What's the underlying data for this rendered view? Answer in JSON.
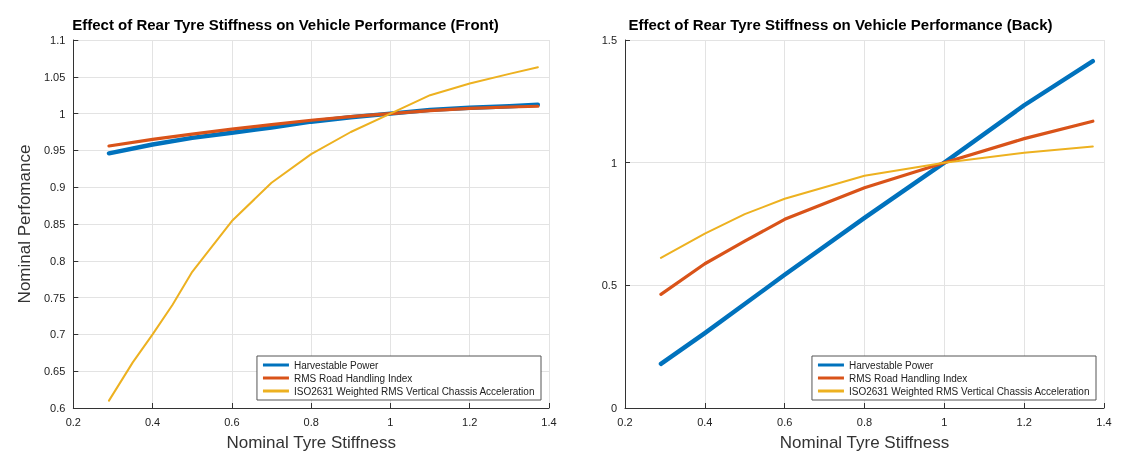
{
  "chart_data": [
    {
      "type": "line",
      "title": "Effect of Rear Tyre Stiffness on Vehicle Performance (Front)",
      "xlabel": "Nominal Tyre Stiffness",
      "ylabel": "Nominal Perfomance",
      "xlim": [
        0.2,
        1.4
      ],
      "xticks": [
        0.2,
        0.4,
        0.6,
        0.8,
        1,
        1.2,
        1.4
      ],
      "ylim": [
        0.6,
        1.1
      ],
      "yticks": [
        0.6,
        0.65,
        0.7,
        0.75,
        0.8,
        0.85,
        0.9,
        0.95,
        1,
        1.05,
        1.1
      ],
      "grid": true,
      "legend": "bottom right",
      "series": [
        {
          "name": "Harvestable Power",
          "color": "#0072bd",
          "x": [
            0.29,
            0.4,
            0.5,
            0.6,
            0.7,
            0.8,
            0.9,
            1,
            1.1,
            1.2,
            1.3,
            1.372
          ],
          "values": [
            0.946,
            0.958,
            0.967,
            0.974,
            0.981,
            0.989,
            0.995,
            1.0,
            1.005,
            1.008,
            1.01,
            1.012
          ]
        },
        {
          "name": "RMS Road Handling Index",
          "color": "#d95319",
          "x": [
            0.29,
            0.4,
            0.5,
            0.6,
            0.7,
            0.8,
            0.9,
            1,
            1.1,
            1.2,
            1.3,
            1.372
          ],
          "values": [
            0.956,
            0.965,
            0.972,
            0.979,
            0.985,
            0.991,
            0.996,
            1.0,
            1.004,
            1.007,
            1.009,
            1.01
          ]
        },
        {
          "name": "ISO2631 Weighted RMS Vertical Chassis Acceleration",
          "color": "#edb120",
          "x": [
            0.29,
            0.35,
            0.4,
            0.45,
            0.5,
            0.6,
            0.7,
            0.8,
            0.9,
            1,
            1.1,
            1.2,
            1.3,
            1.372
          ],
          "values": [
            0.61,
            0.662,
            0.7,
            0.74,
            0.785,
            0.854,
            0.906,
            0.945,
            0.975,
            1.0,
            1.025,
            1.041,
            1.054,
            1.063
          ]
        }
      ]
    },
    {
      "type": "line",
      "title": "Effect of Rear Tyre Stiffness on Vehicle Performance (Back)",
      "xlabel": "Nominal Tyre Stiffness",
      "xlim": [
        0.2,
        1.4
      ],
      "xticks": [
        0.2,
        0.4,
        0.6,
        0.8,
        1,
        1.2,
        1.4
      ],
      "ylim": [
        0,
        1.5
      ],
      "yticks": [
        0,
        0.5,
        1,
        1.5
      ],
      "grid": true,
      "legend": "bottom right",
      "series": [
        {
          "name": "Harvestable Power",
          "color": "#0072bd",
          "x": [
            0.29,
            0.4,
            0.6,
            0.8,
            1,
            1.2,
            1.372
          ],
          "values": [
            0.18,
            0.305,
            0.543,
            0.775,
            1.0,
            1.234,
            1.414
          ]
        },
        {
          "name": "RMS Road Handling Index",
          "color": "#d95319",
          "x": [
            0.29,
            0.4,
            0.5,
            0.6,
            0.8,
            1,
            1.2,
            1.372
          ],
          "values": [
            0.463,
            0.588,
            0.68,
            0.769,
            0.898,
            1.0,
            1.098,
            1.169
          ]
        },
        {
          "name": "ISO2631 Weighted RMS Vertical Chassis Acceleration",
          "color": "#edb120",
          "x": [
            0.29,
            0.4,
            0.5,
            0.6,
            0.8,
            1,
            1.2,
            1.372
          ],
          "values": [
            0.612,
            0.711,
            0.79,
            0.853,
            0.947,
            1.0,
            1.04,
            1.066
          ]
        }
      ]
    }
  ]
}
